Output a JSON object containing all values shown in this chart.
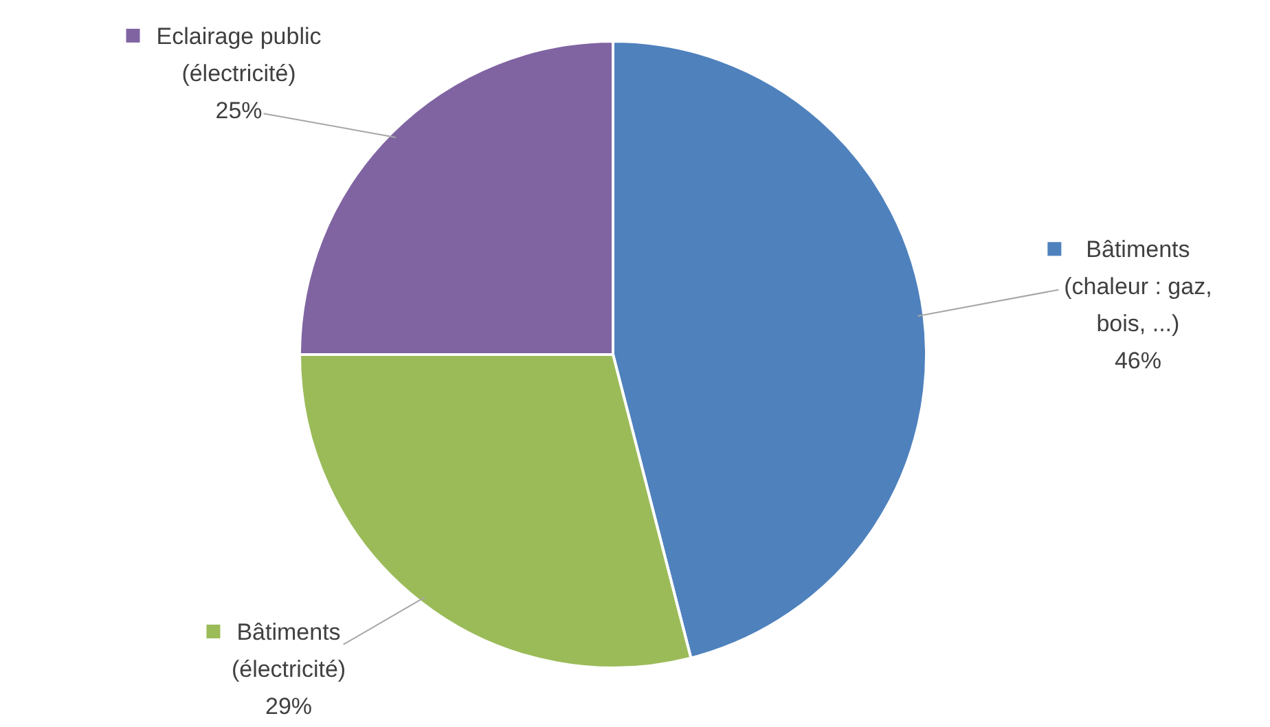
{
  "chart_data": {
    "type": "pie",
    "categories": [
      "Bâtiments (chaleur : gaz, bois, ...)",
      "Bâtiments (électricité)",
      "Eclairage public (électricité)"
    ],
    "values": [
      46,
      29,
      25
    ],
    "colors": [
      "#4f81bd",
      "#9bbb59",
      "#8064a2"
    ],
    "value_labels": [
      "46%",
      "29%",
      "25%"
    ],
    "legend": "right"
  }
}
